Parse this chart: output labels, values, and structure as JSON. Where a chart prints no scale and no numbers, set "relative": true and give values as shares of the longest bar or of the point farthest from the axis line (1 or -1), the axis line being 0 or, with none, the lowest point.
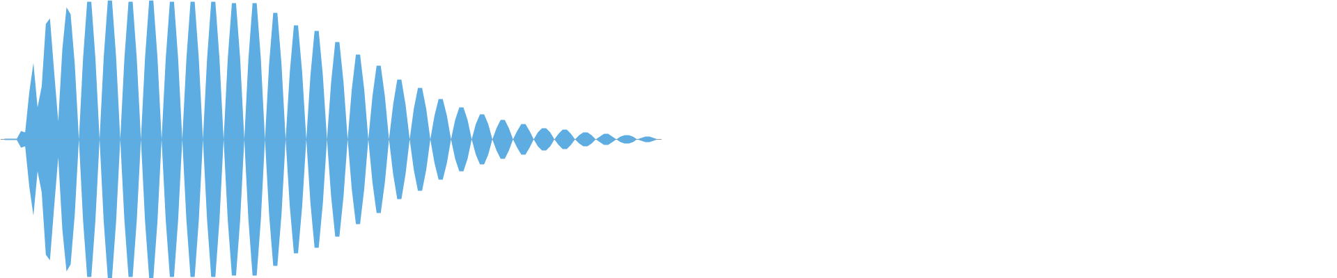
{
  "chart_data": {
    "type": "area",
    "relative": true,
    "categories": [
      null,
      null,
      null,
      null,
      null,
      null,
      null,
      null,
      null,
      null,
      null,
      null,
      null,
      null,
      null,
      null,
      null,
      null,
      null,
      null,
      null,
      null,
      null,
      null,
      null,
      null,
      null,
      null,
      null,
      null,
      null,
      null,
      null,
      null,
      null,
      null,
      null,
      null,
      null,
      null,
      null,
      null,
      null,
      null,
      null,
      null,
      null,
      null,
      null,
      null,
      null,
      null,
      null,
      null,
      null,
      null,
      null,
      null,
      null,
      null,
      null,
      null,
      null,
      null,
      null,
      null,
      null,
      null,
      null,
      null,
      null,
      null,
      null,
      null,
      null,
      null,
      null,
      null,
      null,
      null,
      null,
      null,
      null,
      null,
      null,
      null,
      null,
      null,
      null,
      null,
      null,
      null,
      null,
      null,
      null,
      null,
      null,
      null,
      null,
      null,
      null,
      null,
      null,
      null,
      null,
      null,
      null,
      null,
      null,
      null,
      null,
      null,
      null,
      null,
      null,
      null,
      null,
      null,
      null,
      null,
      null,
      null,
      null,
      null,
      null,
      null,
      null,
      null,
      null,
      null,
      null,
      null,
      null,
      null,
      null,
      null,
      null,
      null,
      null,
      null,
      null,
      null,
      null,
      null,
      null,
      null,
      null,
      null,
      null,
      null,
      null,
      null,
      null,
      null,
      null,
      null,
      null,
      null,
      null
    ],
    "series": [
      {
        "color": "#5dade2",
        "values": [
          0.005,
          0.005,
          0.005,
          0.005,
          0.06,
          0.05,
          0.34,
          0.55,
          0.23,
          0.38,
          0.83,
          0.87,
          0.49,
          0.13,
          0.65,
          0.95,
          0.9,
          0.54,
          0,
          0.58,
          0.99,
          0.99,
          0.58,
          0,
          0.59,
          1,
          1,
          0.59,
          0,
          0.58,
          0.99,
          0.99,
          0.58,
          0,
          0.59,
          1,
          1,
          0.59,
          0,
          0.58,
          0.99,
          0.99,
          0.58,
          0,
          0.58,
          0.99,
          0.99,
          0.58,
          0,
          0.58,
          0.99,
          0.99,
          0.58,
          0,
          0.58,
          0.98,
          0.98,
          0.58,
          0,
          0.58,
          0.98,
          0.98,
          0.58,
          0,
          0.54,
          0.91,
          0.91,
          0.54,
          0,
          0.48,
          0.82,
          0.82,
          0.48,
          0,
          0.46,
          0.78,
          0.78,
          0.46,
          0,
          0.41,
          0.7,
          0.7,
          0.41,
          0,
          0.36,
          0.61,
          0.61,
          0.36,
          0,
          0.31,
          0.53,
          0.53,
          0.31,
          0,
          0.25,
          0.43,
          0.43,
          0.25,
          0,
          0.22,
          0.37,
          0.37,
          0.22,
          0,
          0.17,
          0.29,
          0.29,
          0.17,
          0,
          0.14,
          0.23,
          0.23,
          0.14,
          0,
          0.11,
          0.18,
          0.18,
          0.11,
          0,
          0.08,
          0.14,
          0.14,
          0.08,
          0,
          0.06,
          0.11,
          0.11,
          0.06,
          0,
          0.05,
          0.08,
          0.08,
          0.05,
          0,
          0.04,
          0.07,
          0.07,
          0.04,
          0,
          0.03,
          0.05,
          0.05,
          0.03,
          0,
          0.02,
          0.04,
          0.04,
          0.02,
          0,
          0.02,
          0.03,
          0.03,
          0.02,
          0,
          0.01,
          0.02,
          0.02,
          0.01,
          0
        ]
      },
      {
        "color": "#5eade2",
        "values": [
          -0.005,
          -0.005,
          -0.005,
          -0.005,
          -0.06,
          -0.05,
          -0.34,
          -0.55,
          -0.23,
          -0.38,
          -0.83,
          -0.87,
          -0.49,
          -0.13,
          -0.65,
          -0.95,
          -0.9,
          -0.54,
          0,
          -0.58,
          -0.99,
          -0.99,
          -0.58,
          0,
          -0.59,
          -1,
          -1,
          -0.59,
          0,
          -0.58,
          -0.99,
          -0.99,
          -0.58,
          0,
          -0.59,
          -1,
          -1,
          -0.59,
          0,
          -0.58,
          -0.99,
          -0.99,
          -0.58,
          0,
          -0.58,
          -0.99,
          -0.99,
          -0.58,
          0,
          -0.58,
          -0.99,
          -0.99,
          -0.58,
          0,
          -0.58,
          -0.98,
          -0.98,
          -0.58,
          0,
          -0.58,
          -0.98,
          -0.98,
          -0.58,
          0,
          -0.54,
          -0.91,
          -0.91,
          -0.54,
          0,
          -0.48,
          -0.82,
          -0.82,
          -0.48,
          0,
          -0.46,
          -0.78,
          -0.78,
          -0.46,
          0,
          -0.41,
          -0.7,
          -0.7,
          -0.41,
          0,
          -0.36,
          -0.61,
          -0.61,
          -0.36,
          0,
          -0.31,
          -0.53,
          -0.53,
          -0.31,
          0,
          -0.25,
          -0.43,
          -0.43,
          -0.25,
          0,
          -0.22,
          -0.37,
          -0.37,
          -0.22,
          0,
          -0.17,
          -0.29,
          -0.29,
          -0.17,
          0,
          -0.14,
          -0.23,
          -0.23,
          -0.14,
          0,
          -0.11,
          -0.18,
          -0.18,
          -0.11,
          0,
          -0.08,
          -0.14,
          -0.14,
          -0.08,
          0,
          -0.06,
          -0.11,
          -0.11,
          -0.06,
          0,
          -0.05,
          -0.08,
          -0.08,
          -0.05,
          0,
          -0.04,
          -0.07,
          -0.07,
          -0.04,
          0,
          -0.03,
          -0.05,
          -0.05,
          -0.03,
          0,
          -0.02,
          -0.04,
          -0.04,
          -0.02,
          0,
          -0.02,
          -0.03,
          -0.03,
          -0.02,
          0,
          -0.01,
          -0.02,
          -0.02,
          -0.01,
          0
        ]
      }
    ]
  }
}
